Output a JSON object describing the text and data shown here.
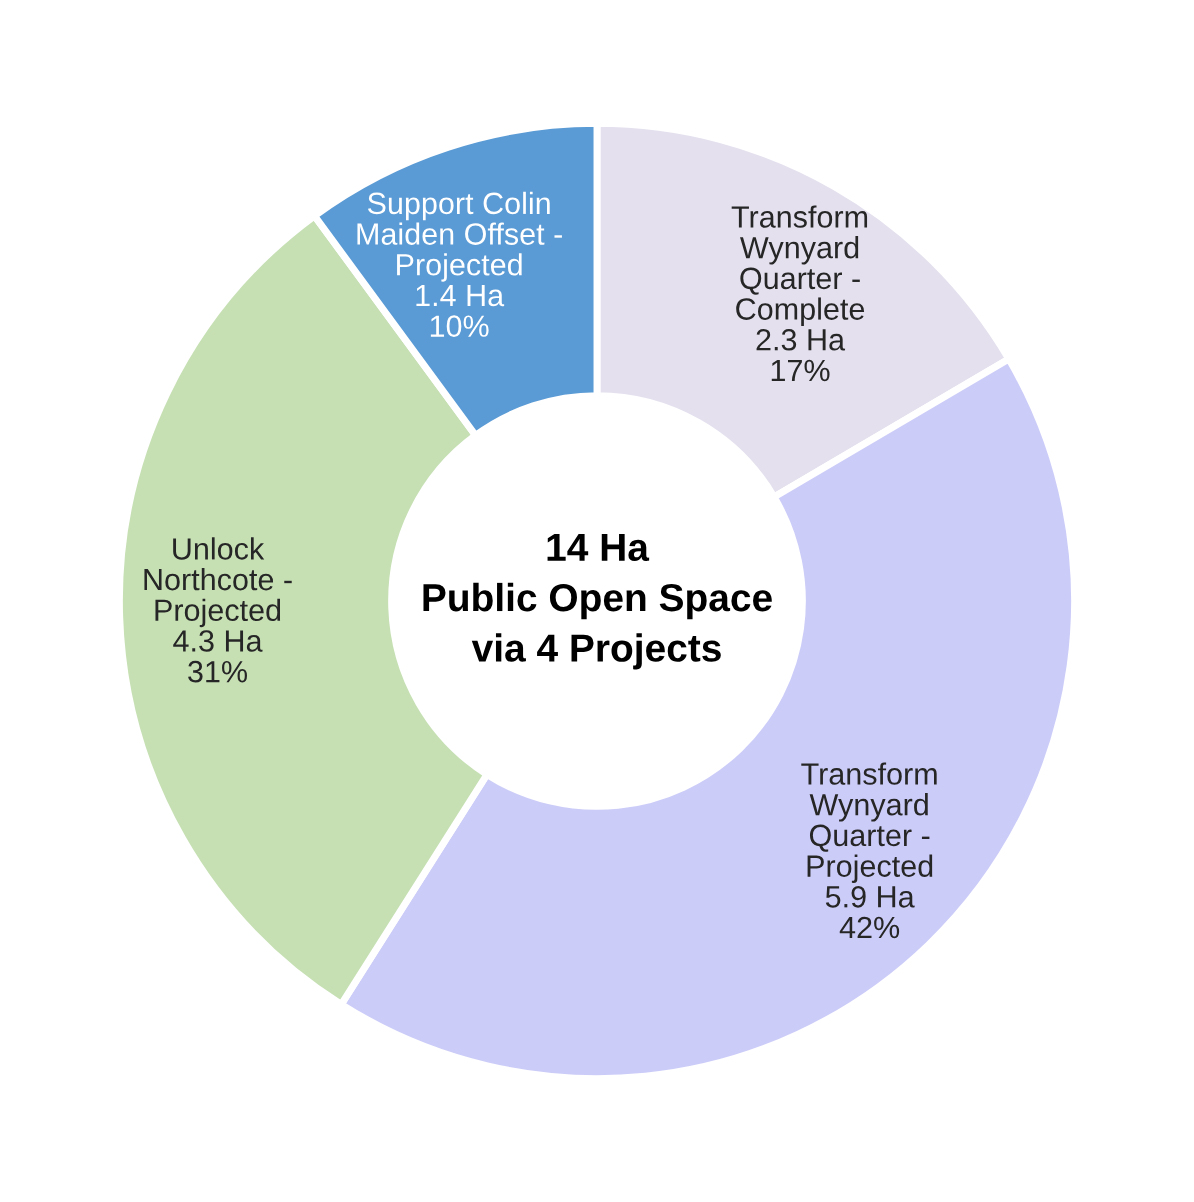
{
  "chart_data": {
    "type": "donut",
    "title": "14 Ha\nPublic Open Space\nvia 4 Projects",
    "categories": [
      "Transform\nWynyard\nQuarter -\nComplete",
      "Transform\nWynyard\nQuarter -\nProjected",
      "Unlock\nNorthcote -\nProjected",
      "Support Colin\nMaiden Offset -\nProjected"
    ],
    "values": [
      2.3,
      5.9,
      4.3,
      1.4
    ],
    "value_labels": [
      "2.3 Ha\n17%",
      "5.9 Ha\n42%",
      "4.3 Ha\n31%",
      "1.4 Ha\n10%"
    ],
    "colors": [
      "#e4e0ee",
      "#ccccf9",
      "#c6e0b4",
      "#5b9bd5"
    ],
    "legend": false
  }
}
